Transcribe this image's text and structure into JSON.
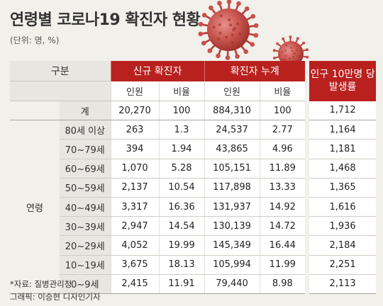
{
  "title": "연령별 코로나19 확진자 현황",
  "unit": "(단위: 명, %)",
  "header": {
    "group_label": "구분",
    "new_cases": "신규 확진자",
    "cumulative": "확진자 누계",
    "per_100k_line1": "인구 10만명 당",
    "per_100k_line2": "발생률",
    "col_people": "인원",
    "col_ratio": "비율"
  },
  "row_group_label": "연령",
  "chart_data": {
    "type": "table",
    "title": "연령별 코로나19 확진자 현황",
    "unit": "(단위: 명, %)",
    "columns": [
      "구분",
      "신규 확진자 인원",
      "신규 확진자 비율",
      "확진자 누계 인원",
      "확진자 누계 비율",
      "인구 10만명 당 발생률"
    ],
    "rows": [
      {
        "label": "계",
        "new_count": "20,270",
        "new_ratio": "100",
        "cum_count": "884,310",
        "cum_ratio": "100",
        "per_100k": "1,712"
      },
      {
        "label": "80세 이상",
        "new_count": "263",
        "new_ratio": "1.3",
        "cum_count": "24,537",
        "cum_ratio": "2.77",
        "per_100k": "1,164"
      },
      {
        "label": "70~79세",
        "new_count": "394",
        "new_ratio": "1.94",
        "cum_count": "43,865",
        "cum_ratio": "4.96",
        "per_100k": "1,181"
      },
      {
        "label": "60~69세",
        "new_count": "1,070",
        "new_ratio": "5.28",
        "cum_count": "105,151",
        "cum_ratio": "11.89",
        "per_100k": "1,468"
      },
      {
        "label": "50~59세",
        "new_count": "2,137",
        "new_ratio": "10.54",
        "cum_count": "117,898",
        "cum_ratio": "13.33",
        "per_100k": "1,365"
      },
      {
        "label": "40~49세",
        "new_count": "3,317",
        "new_ratio": "16.36",
        "cum_count": "131,937",
        "cum_ratio": "14.92",
        "per_100k": "1,616"
      },
      {
        "label": "30~39세",
        "new_count": "2,947",
        "new_ratio": "14.54",
        "cum_count": "130,139",
        "cum_ratio": "14.72",
        "per_100k": "1,936"
      },
      {
        "label": "20~29세",
        "new_count": "4,052",
        "new_ratio": "19.99",
        "cum_count": "145,349",
        "cum_ratio": "16.44",
        "per_100k": "2,184"
      },
      {
        "label": "10~19세",
        "new_count": "3,675",
        "new_ratio": "18.13",
        "cum_count": "105,994",
        "cum_ratio": "11.99",
        "per_100k": "2,251"
      },
      {
        "label": "0~9세",
        "new_count": "2,415",
        "new_ratio": "11.91",
        "cum_count": "79,440",
        "cum_ratio": "8.98",
        "per_100k": "2,113"
      }
    ]
  },
  "footer": {
    "source": "*자료: 질병관리청",
    "credit": "그래픽: 이승현 디자인기자"
  },
  "colors": {
    "header_red": "#b9211f",
    "background": "#f1f0eb",
    "label_column": "#e7e6e1"
  }
}
